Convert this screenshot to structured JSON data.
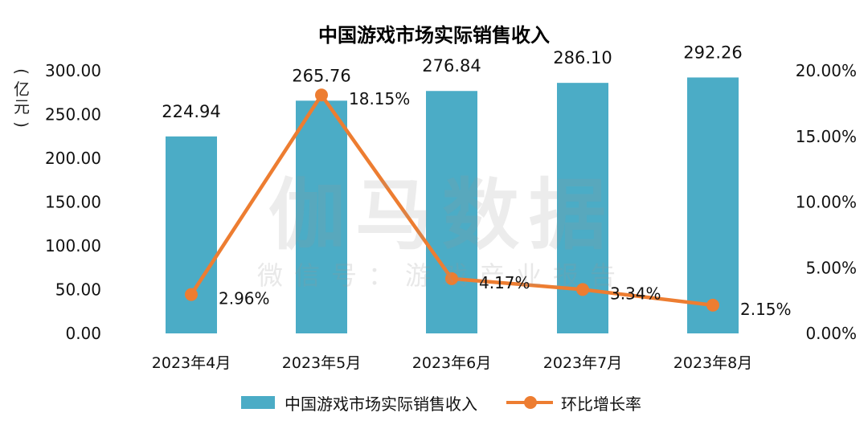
{
  "chart_data": {
    "type": "bar",
    "title": "中国游戏市场实际销售收入",
    "ylabel": "(亿元)",
    "categories": [
      "2023年4月",
      "2023年5月",
      "2023年6月",
      "2023年7月",
      "2023年8月"
    ],
    "series": [
      {
        "name": "中国游戏市场实际销售收入",
        "type": "bar",
        "axis": "left",
        "values": [
          224.94,
          265.76,
          276.84,
          286.1,
          292.26
        ],
        "labels": [
          "224.94",
          "265.76",
          "276.84",
          "286.10",
          "292.26"
        ]
      },
      {
        "name": "环比增长率",
        "type": "line",
        "axis": "right",
        "values": [
          2.96,
          18.15,
          4.17,
          3.34,
          2.15
        ],
        "labels": [
          "2.96%",
          "18.15%",
          "4.17%",
          "3.34%",
          "2.15%"
        ]
      }
    ],
    "y_left": {
      "range": [
        0,
        300
      ],
      "ticks": [
        "0.00",
        "50.00",
        "100.00",
        "150.00",
        "200.00",
        "250.00",
        "300.00"
      ]
    },
    "y_right": {
      "range": [
        0,
        20
      ],
      "ticks": [
        "0.00%",
        "5.00%",
        "10.00%",
        "15.00%",
        "20.00%"
      ]
    },
    "grid": false,
    "legend": "bottom",
    "colors": {
      "bar": "#4bacc6",
      "line": "#ed7d31"
    }
  },
  "watermark": {
    "main": "伽马数据",
    "sub": "微信号：游戏产业报告"
  }
}
